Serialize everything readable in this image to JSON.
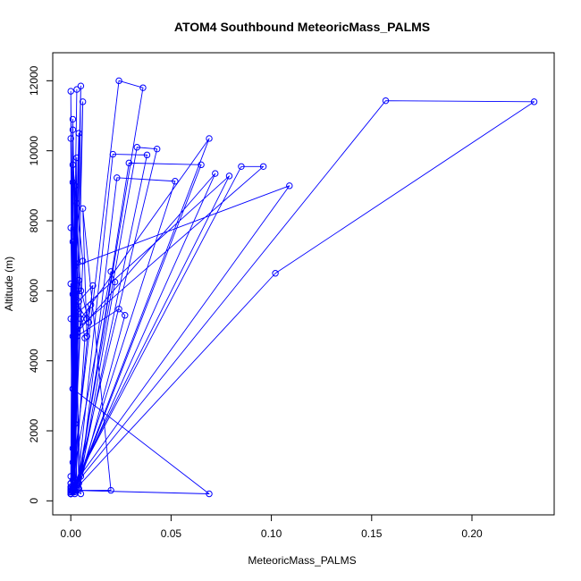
{
  "chart_data": {
    "type": "line",
    "title": "ATOM4 Southbound MeteoricMass_PALMS",
    "xlabel": "MeteoricMass_PALMS",
    "ylabel": "Altitude (m)",
    "xlim": [
      -0.009,
      0.241
    ],
    "ylim": [
      -400,
      12800
    ],
    "x_ticks": [
      0.0,
      0.05,
      0.1,
      0.15,
      0.2
    ],
    "x_tick_labels": [
      "0.00",
      "0.05",
      "0.10",
      "0.15",
      "0.20"
    ],
    "y_ticks": [
      0,
      2000,
      4000,
      6000,
      8000,
      10000,
      12000
    ],
    "y_tick_labels": [
      "0",
      "2000",
      "4000",
      "6000",
      "8000",
      "10000",
      "12000"
    ],
    "grid": false,
    "line_color": "#0000ff",
    "marker": "open-circle",
    "series": [
      {
        "points": [
          [
            0.0,
            200
          ],
          [
            0.003,
            11750
          ],
          [
            0.0,
            300
          ],
          [
            0.001,
            10600
          ],
          [
            0.002,
            450
          ],
          [
            0.005,
            11850
          ],
          [
            0.0,
            250
          ],
          [
            0.004,
            10500
          ],
          [
            0.001,
            600
          ],
          [
            0.0,
            11700
          ],
          [
            0.002,
            300
          ],
          [
            0.003,
            9800
          ],
          [
            0.0,
            500
          ],
          [
            0.001,
            10900
          ],
          [
            0.004,
            350
          ],
          [
            0.002,
            9000
          ],
          [
            0.0,
            200
          ],
          [
            0.003,
            8500
          ],
          [
            0.001,
            400
          ],
          [
            0.0,
            10350
          ],
          [
            0.002,
            250
          ],
          [
            0.006,
            11400
          ],
          [
            0.0,
            700
          ],
          [
            0.001,
            9100
          ],
          [
            0.003,
            300
          ],
          [
            0.0,
            7800
          ],
          [
            0.002,
            500
          ],
          [
            0.001,
            7400
          ],
          [
            0.0,
            300
          ],
          [
            0.002,
            6800
          ],
          [
            0.001,
            250
          ],
          [
            0.0,
            6200
          ],
          [
            0.003,
            450
          ],
          [
            0.001,
            5900
          ],
          [
            0.0,
            200
          ],
          [
            0.002,
            5500
          ],
          [
            0.001,
            350
          ],
          [
            0.0,
            5200
          ],
          [
            0.003,
            600
          ],
          [
            0.001,
            4700
          ],
          [
            0.0,
            250
          ],
          [
            0.002,
            4300
          ],
          [
            0.0,
            400
          ],
          [
            0.001,
            3200
          ],
          [
            0.0,
            300
          ],
          [
            0.002,
            2200
          ],
          [
            0.0,
            500
          ],
          [
            0.001,
            1500
          ],
          [
            0.0,
            250
          ],
          [
            0.001,
            1100
          ],
          [
            0.0,
            200
          ]
        ]
      },
      {
        "points": [
          [
            0.0,
            250
          ],
          [
            0.024,
            12000
          ],
          [
            0.036,
            11800
          ],
          [
            0.003,
            300
          ],
          [
            0.021,
            9900
          ],
          [
            0.038,
            9880
          ],
          [
            0.004,
            500
          ],
          [
            0.029,
            9650
          ],
          [
            0.065,
            9600
          ],
          [
            0.005,
            700
          ],
          [
            0.023,
            9230
          ],
          [
            0.052,
            9130
          ],
          [
            0.003,
            400
          ],
          [
            0.033,
            10100
          ],
          [
            0.043,
            10050
          ],
          [
            0.002,
            300
          ],
          [
            0.069,
            10350
          ],
          [
            0.005,
            5200
          ],
          [
            0.001,
            250
          ],
          [
            0.072,
            9350
          ],
          [
            0.003,
            4800
          ],
          [
            0.001,
            400
          ],
          [
            0.079,
            9280
          ],
          [
            0.004,
            5400
          ],
          [
            0.0,
            300
          ],
          [
            0.085,
            9550
          ],
          [
            0.096,
            9550
          ],
          [
            0.003,
            4900
          ],
          [
            0.0,
            350
          ],
          [
            0.109,
            9000
          ],
          [
            0.002,
            6700
          ],
          [
            0.001,
            300
          ],
          [
            0.069,
            200
          ],
          [
            0.001,
            3200
          ]
        ]
      },
      {
        "points": [
          [
            0.0,
            300
          ],
          [
            0.157,
            11430
          ],
          [
            0.231,
            11400
          ],
          [
            0.102,
            6500
          ],
          [
            0.001,
            250
          ],
          [
            0.006,
            6850
          ],
          [
            0.001,
            9600
          ],
          [
            0.005,
            6000
          ],
          [
            0.002,
            5700
          ],
          [
            0.008,
            5200
          ],
          [
            0.01,
            5600
          ],
          [
            0.003,
            4800
          ],
          [
            0.001,
            350
          ],
          [
            0.005,
            200
          ],
          [
            0.002,
            5400
          ]
        ]
      },
      {
        "points": [
          [
            0.0,
            400
          ],
          [
            0.02,
            6550
          ],
          [
            0.022,
            6250
          ],
          [
            0.004,
            350
          ],
          [
            0.027,
            5300
          ],
          [
            0.024,
            5480
          ],
          [
            0.003,
            4700
          ],
          [
            0.001,
            300
          ],
          [
            0.02,
            300
          ],
          [
            0.006,
            8350
          ],
          [
            0.008,
            4700
          ],
          [
            0.011,
            6150
          ],
          [
            0.004,
            5700
          ],
          [
            0.002,
            200
          ],
          [
            0.007,
            4650
          ],
          [
            0.003,
            6000
          ],
          [
            0.001,
            350
          ],
          [
            0.009,
            5100
          ],
          [
            0.004,
            6300
          ],
          [
            0.002,
            400
          ]
        ]
      }
    ]
  }
}
